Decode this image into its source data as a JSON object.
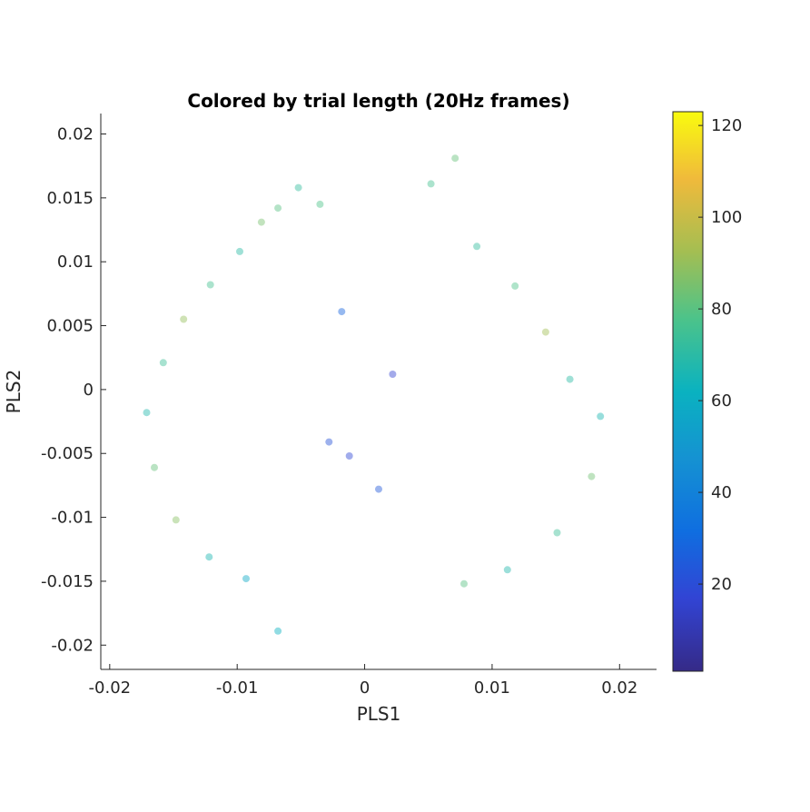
{
  "chart_data": {
    "type": "scatter",
    "title": "Colored by trial length (20Hz frames)",
    "xlabel": "PLS1",
    "ylabel": "PLS2",
    "xlim": [
      -0.0207,
      0.0229
    ],
    "ylim": [
      -0.0219,
      0.0216
    ],
    "xticks": [
      -0.02,
      -0.01,
      0,
      0.01,
      0.02
    ],
    "xtick_labels": [
      "-0.02",
      "-0.01",
      "0",
      "0.01",
      "0.02"
    ],
    "yticks": [
      0.02,
      0.015,
      0.01,
      0.005,
      0,
      -0.005,
      -0.01,
      -0.015,
      -0.02
    ],
    "ytick_labels": [
      "0.02",
      "0.015",
      "0.01",
      "0.005",
      "0",
      "-0.005",
      "-0.01",
      "-0.015",
      "-0.02"
    ],
    "grid": false,
    "colormap": "parula",
    "marker": "filled circle, semi-transparent",
    "colorbar": {
      "label": "",
      "range": [
        1,
        123
      ],
      "ticks": [
        20,
        40,
        60,
        80,
        100,
        120
      ],
      "tick_labels": [
        "20",
        "40",
        "60",
        "80",
        "100",
        "120"
      ]
    },
    "series": [
      {
        "description_color_value": "trial length",
        "points": [
          {
            "x": -0.0035,
            "y": 0.0145,
            "c": 78
          },
          {
            "x": -0.0052,
            "y": 0.0158,
            "c": 72
          },
          {
            "x": -0.0068,
            "y": 0.0142,
            "c": 80
          },
          {
            "x": -0.0081,
            "y": 0.0131,
            "c": 85
          },
          {
            "x": -0.0098,
            "y": 0.0108,
            "c": 70
          },
          {
            "x": -0.0121,
            "y": 0.0082,
            "c": 76
          },
          {
            "x": -0.0142,
            "y": 0.0055,
            "c": 90
          },
          {
            "x": -0.0158,
            "y": 0.0021,
            "c": 74
          },
          {
            "x": -0.0171,
            "y": -0.0018,
            "c": 68
          },
          {
            "x": -0.0165,
            "y": -0.0061,
            "c": 82
          },
          {
            "x": -0.0148,
            "y": -0.0102,
            "c": 88
          },
          {
            "x": -0.0122,
            "y": -0.0131,
            "c": 66
          },
          {
            "x": -0.0093,
            "y": -0.0148,
            "c": 58
          },
          {
            "x": -0.0068,
            "y": -0.0189,
            "c": 62
          },
          {
            "x": 0.0052,
            "y": 0.0161,
            "c": 76
          },
          {
            "x": 0.0071,
            "y": 0.0181,
            "c": 82
          },
          {
            "x": 0.0088,
            "y": 0.0112,
            "c": 72
          },
          {
            "x": 0.0118,
            "y": 0.0081,
            "c": 78
          },
          {
            "x": 0.0142,
            "y": 0.0045,
            "c": 92
          },
          {
            "x": 0.0161,
            "y": 0.0008,
            "c": 70
          },
          {
            "x": 0.0185,
            "y": -0.0021,
            "c": 66
          },
          {
            "x": 0.0178,
            "y": -0.0068,
            "c": 84
          },
          {
            "x": 0.0151,
            "y": -0.0112,
            "c": 74
          },
          {
            "x": 0.0112,
            "y": -0.0141,
            "c": 68
          },
          {
            "x": 0.0078,
            "y": -0.0152,
            "c": 80
          },
          {
            "x": -0.0028,
            "y": -0.0041,
            "c": 22
          },
          {
            "x": -0.0012,
            "y": -0.0052,
            "c": 18
          },
          {
            "x": 0.0011,
            "y": -0.0078,
            "c": 24
          },
          {
            "x": 0.0022,
            "y": 0.0012,
            "c": 16
          },
          {
            "x": -0.0018,
            "y": 0.0061,
            "c": 28
          }
        ]
      }
    ]
  }
}
